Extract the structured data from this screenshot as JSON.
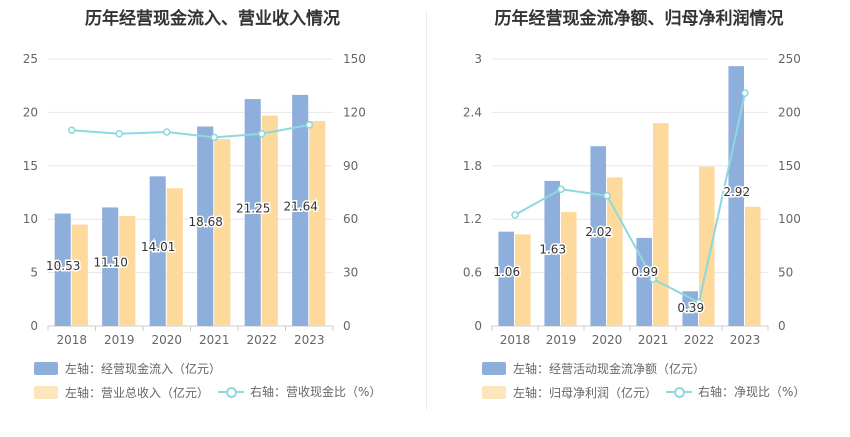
{
  "chart_data": [
    {
      "type": "bar",
      "title": "历年经营现金流入、营业收入情况",
      "categories": [
        "2018",
        "2019",
        "2020",
        "2021",
        "2022",
        "2023"
      ],
      "series": [
        {
          "name": "左轴：经营现金流入（亿元）",
          "axis": "left",
          "kind": "bar",
          "color": "#8eaedb",
          "values": [
            10.53,
            11.1,
            14.01,
            18.68,
            21.25,
            21.64
          ],
          "labels": [
            "10.53",
            "11.10",
            "14.01",
            "18.68",
            "21.25",
            "21.64"
          ]
        },
        {
          "name": "左轴：营业总收入（亿元）",
          "axis": "left",
          "kind": "bar",
          "color": "#fdd99b",
          "values": [
            9.5,
            10.3,
            12.9,
            17.5,
            19.7,
            19.2
          ]
        },
        {
          "name": "右轴：营收现金比（%）",
          "axis": "right",
          "kind": "line",
          "color": "#8ed8e0",
          "values": [
            110,
            108,
            109,
            106,
            108,
            113
          ]
        }
      ],
      "ylim_left": [
        0,
        25
      ],
      "yticks_left": [
        "0",
        "5",
        "10",
        "15",
        "20",
        "25"
      ],
      "ylim_right": [
        0,
        150
      ],
      "yticks_right": [
        "0",
        "30",
        "60",
        "90",
        "120",
        "150"
      ],
      "grid": true,
      "legend": "bottom"
    },
    {
      "type": "bar",
      "title": "历年经营现金流净额、归母净利润情况",
      "categories": [
        "2018",
        "2019",
        "2020",
        "2021",
        "2022",
        "2023"
      ],
      "series": [
        {
          "name": "左轴：经营活动现金流净额（亿元）",
          "axis": "left",
          "kind": "bar",
          "color": "#8eaedb",
          "values": [
            1.06,
            1.63,
            2.02,
            0.99,
            0.39,
            2.92
          ],
          "labels": [
            "1.06",
            "1.63",
            "2.02",
            "0.99",
            "0.39",
            "2.92"
          ]
        },
        {
          "name": "左轴：归母净利润（亿元）",
          "axis": "left",
          "kind": "bar",
          "color": "#fdd99b",
          "values": [
            1.03,
            1.28,
            1.67,
            2.28,
            1.79,
            1.34
          ]
        },
        {
          "name": "右轴：净现比（%）",
          "axis": "right",
          "kind": "line",
          "color": "#8ed8e0",
          "values": [
            104,
            128,
            122,
            44,
            22,
            218
          ]
        }
      ],
      "ylim_left": [
        0,
        3
      ],
      "yticks_left": [
        "0",
        "0.6",
        "1.2",
        "1.8",
        "2.4",
        "3"
      ],
      "ylim_right": [
        0,
        250
      ],
      "yticks_right": [
        "0",
        "50",
        "100",
        "150",
        "200",
        "250"
      ],
      "grid": true,
      "legend": "bottom"
    }
  ]
}
